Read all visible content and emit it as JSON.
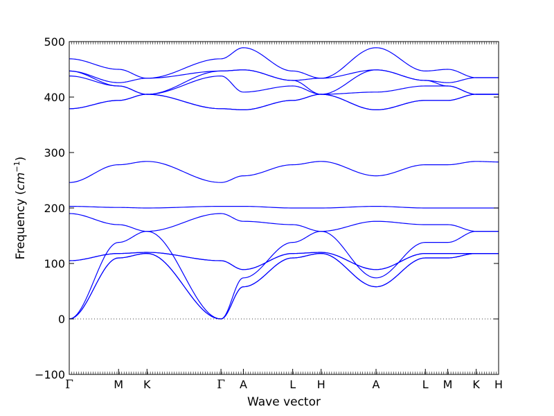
{
  "chart_data": {
    "type": "line",
    "title": "",
    "xlabel": "Wave vector",
    "ylabel": {
      "prefix": "Frequency (",
      "unit_base": "cm",
      "unit_exp": "−1",
      "suffix": ")"
    },
    "ylim": [
      -100,
      500
    ],
    "y_ticks": [
      -100,
      0,
      100,
      200,
      300,
      400,
      500
    ],
    "grid": false,
    "zero_line": {
      "y": 0,
      "style": "dotted"
    },
    "line_color": "#0000ff",
    "x_path": [
      "Γ",
      "M",
      "K",
      "Γ",
      "A",
      "L",
      "H",
      "A",
      "L",
      "M",
      "K",
      "H"
    ],
    "x_ticks": [
      0,
      0.2167,
      0.3417,
      0.6667,
      0.7651,
      0.9818,
      1.1068,
      1.3481,
      1.5648,
      1.6632,
      1.7882,
      1.8866
    ],
    "branches": [
      {
        "values": [
          0,
          110,
          118,
          0,
          58,
          110,
          118,
          58,
          110,
          110,
          118,
          118
        ]
      },
      {
        "values": [
          0,
          110,
          118,
          0,
          58,
          110,
          118,
          58,
          110,
          110,
          118,
          118
        ]
      },
      {
        "values": [
          0,
          138,
          158,
          0,
          74,
          138,
          158,
          74,
          138,
          138,
          158,
          158
        ]
      },
      {
        "values": [
          105,
          118,
          120,
          105,
          89,
          118,
          120,
          89,
          118,
          118,
          118,
          118
        ]
      },
      {
        "values": [
          105,
          118,
          120,
          105,
          89,
          118,
          120,
          89,
          118,
          118,
          118,
          118
        ]
      },
      {
        "values": [
          190,
          170,
          158,
          190,
          176,
          170,
          158,
          176,
          170,
          170,
          158,
          158
        ]
      },
      {
        "values": [
          203,
          201,
          200,
          203,
          203,
          200,
          200,
          203,
          200,
          200,
          200,
          200
        ]
      },
      {
        "values": [
          246,
          278,
          284,
          246,
          258,
          278,
          284,
          258,
          278,
          278,
          284,
          283
        ]
      },
      {
        "values": [
          379,
          394,
          405,
          379,
          377,
          394,
          405,
          377,
          394,
          394,
          405,
          405
        ]
      },
      {
        "values": [
          379,
          394,
          405,
          379,
          377,
          394,
          405,
          377,
          394,
          394,
          405,
          405
        ]
      },
      {
        "values": [
          438,
          420,
          405,
          438,
          409,
          420,
          405,
          409,
          420,
          420,
          405,
          405
        ]
      },
      {
        "values": [
          447,
          420,
          405,
          447,
          449,
          430,
          405,
          449,
          430,
          420,
          405,
          405
        ]
      },
      {
        "values": [
          447,
          426,
          434,
          447,
          449,
          430,
          434,
          449,
          430,
          426,
          435,
          435
        ]
      },
      {
        "values": [
          469,
          450,
          434,
          469,
          489,
          447,
          434,
          489,
          447,
          450,
          435,
          435
        ]
      }
    ]
  }
}
